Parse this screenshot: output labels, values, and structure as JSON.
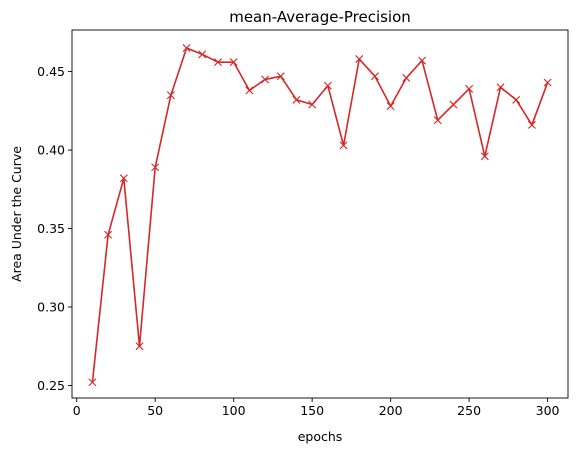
{
  "chart_data": {
    "type": "line",
    "title": "mean-Average-Precision",
    "xlabel": "epochs",
    "ylabel": "Area Under the Curve",
    "xlim": [
      -3,
      313
    ],
    "ylim": [
      0.242,
      0.4765
    ],
    "xticks": [
      0,
      50,
      100,
      150,
      200,
      250,
      300
    ],
    "xtick_labels": [
      "0",
      "50",
      "100",
      "150",
      "200",
      "250",
      "300"
    ],
    "yticks": [
      0.25,
      0.3,
      0.35,
      0.4,
      0.45
    ],
    "ytick_labels": [
      "0.25",
      "0.30",
      "0.35",
      "0.40",
      "0.45"
    ],
    "grid": false,
    "series": [
      {
        "color": "#d62728",
        "marker": "x",
        "x": [
          10,
          20,
          30,
          40,
          50,
          60,
          70,
          80,
          90,
          100,
          110,
          120,
          130,
          140,
          150,
          160,
          170,
          180,
          190,
          200,
          210,
          220,
          230,
          240,
          250,
          260,
          270,
          280,
          290,
          300
        ],
        "values": [
          0.252,
          0.346,
          0.382,
          0.275,
          0.389,
          0.435,
          0.465,
          0.461,
          0.456,
          0.456,
          0.438,
          0.445,
          0.447,
          0.432,
          0.429,
          0.441,
          0.403,
          0.458,
          0.447,
          0.428,
          0.446,
          0.457,
          0.419,
          0.429,
          0.439,
          0.396,
          0.44,
          0.432,
          0.416,
          0.443
        ]
      }
    ]
  }
}
